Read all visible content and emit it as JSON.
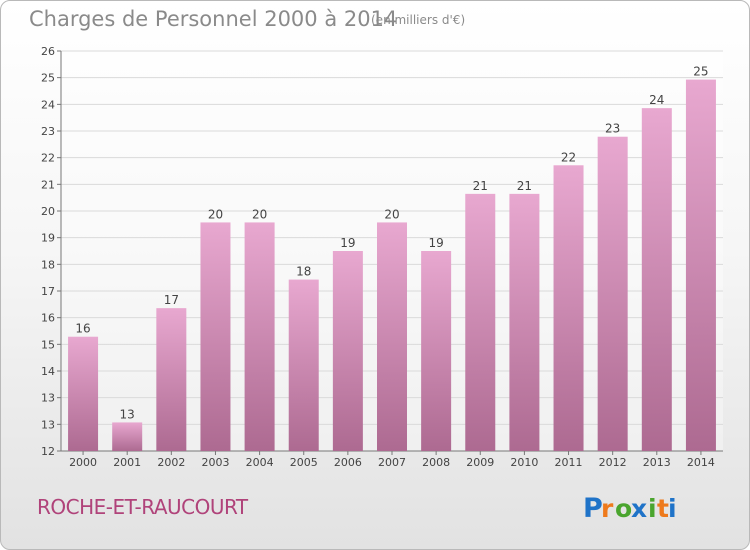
{
  "title": "Charges de Personnel 2000 à 2014",
  "subtitle": "(en milliers d'€)",
  "commune": "ROCHE-ET-RAUCOURT",
  "logo": {
    "text": "Proxiti",
    "letters": [
      "P",
      "r",
      "o",
      "x",
      "i",
      "t",
      "i"
    ],
    "colors": [
      "#1f73c8",
      "#ee7a1c",
      "#4aa52e",
      "#1f73c8",
      "#4aa52e",
      "#ee7a1c",
      "#1f73c8"
    ]
  },
  "colors": {
    "bar_top": "#e8a8d0",
    "bar_bottom": "#ad6a91",
    "title": "#8a8a8a",
    "commune": "#b0437a"
  },
  "chart_data": {
    "type": "bar",
    "title": "Charges de Personnel 2000 à 2014",
    "subtitle": "(en milliers d'€)",
    "categories": [
      "2000",
      "2001",
      "2002",
      "2003",
      "2004",
      "2005",
      "2006",
      "2007",
      "2008",
      "2009",
      "2010",
      "2011",
      "2012",
      "2013",
      "2014"
    ],
    "values": [
      16,
      13,
      17,
      20,
      20,
      18,
      19,
      20,
      19,
      21,
      21,
      22,
      23,
      24,
      25
    ],
    "labels": [
      "16",
      "13",
      "17",
      "20",
      "20",
      "18",
      "19",
      "20",
      "19",
      "21",
      "21",
      "22",
      "23",
      "24",
      "25"
    ],
    "yticks": [
      "12",
      "13",
      "13",
      "14",
      "15",
      "16",
      "17",
      "18",
      "19",
      "20",
      "21",
      "22",
      "23",
      "24",
      "25",
      "26"
    ],
    "ylim": [
      12,
      26
    ],
    "grid": true,
    "legend": "none"
  }
}
